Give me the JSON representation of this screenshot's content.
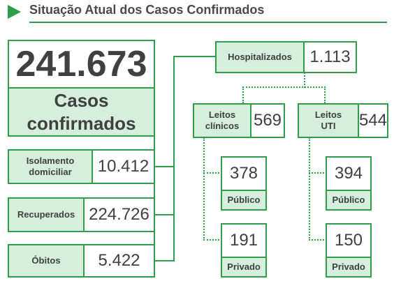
{
  "header": {
    "title": "Situação Atual dos Casos Confirmados"
  },
  "total": {
    "value": "241.673",
    "label": "Casos confirmados"
  },
  "isolamento": {
    "label": "Isolamento domiciliar",
    "value": "10.412"
  },
  "recuperados": {
    "label": "Recuperados",
    "value": "224.726"
  },
  "obitos": {
    "label": "Óbitos",
    "value": "5.422"
  },
  "hospitalizados": {
    "label": "Hospitalizados",
    "value": "1.113"
  },
  "leitos_clinicos": {
    "label": "Leitos clínicos",
    "value": "569",
    "publico": {
      "value": "378",
      "label": "Público"
    },
    "privado": {
      "value": "191",
      "label": "Privado"
    }
  },
  "leitos_uti": {
    "label": "Leitos UTI",
    "value": "544",
    "publico": {
      "value": "394",
      "label": "Público"
    },
    "privado": {
      "value": "150",
      "label": "Privado"
    }
  },
  "colors": {
    "accent": "#2e9e4b",
    "label_bg": "#d6eedc",
    "text": "#404040"
  }
}
